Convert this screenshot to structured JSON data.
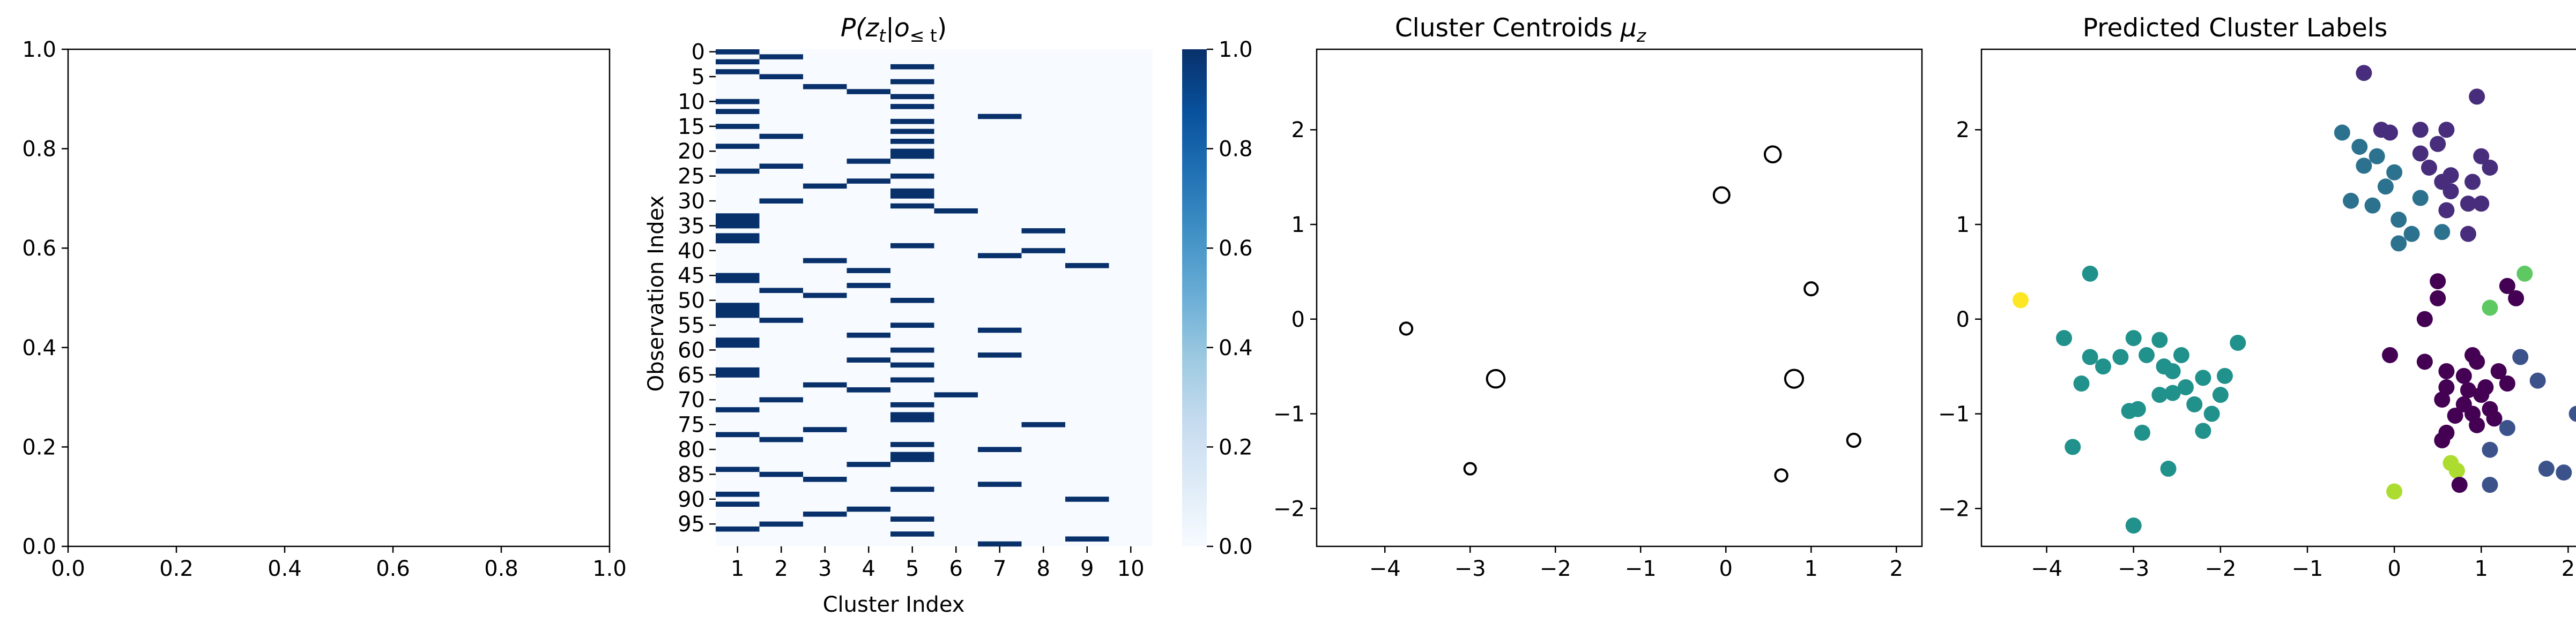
{
  "chart_data": [
    {
      "type": "empty",
      "title": "",
      "xlim": [
        0,
        1
      ],
      "ylim": [
        0,
        1
      ],
      "xticks": [
        "0.0",
        "0.2",
        "0.4",
        "0.6",
        "0.8",
        "1.0"
      ],
      "yticks": [
        "0.0",
        "0.2",
        "0.4",
        "0.6",
        "0.8",
        "1.0"
      ]
    },
    {
      "type": "heatmap",
      "title": "P(z_t | o_≤t)",
      "title_parts": {
        "p": "P(",
        "z": "z",
        "zsub": "t",
        "bar": "|",
        "o": "o",
        "osub": "≤ t",
        "close": ")"
      },
      "xlabel": "Cluster Index",
      "ylabel": "Observation Index",
      "x_categories": [
        "1",
        "2",
        "3",
        "4",
        "5",
        "6",
        "7",
        "8",
        "9",
        "10"
      ],
      "y_tick_labels": [
        "0",
        "5",
        "10",
        "15",
        "20",
        "25",
        "30",
        "35",
        "40",
        "45",
        "50",
        "55",
        "60",
        "65",
        "70",
        "75",
        "80",
        "85",
        "90",
        "95"
      ],
      "n_rows": 100,
      "value_range": [
        0,
        1
      ],
      "colormap": [
        "#f7fbff",
        "#deebf7",
        "#c6dbef",
        "#9ecae1",
        "#6baed6",
        "#4292c6",
        "#2171b5",
        "#08519c",
        "#08306b"
      ],
      "colorbar_ticks": [
        "0.0",
        "0.2",
        "0.4",
        "0.6",
        "0.8",
        "1.0"
      ],
      "argmax_cluster": [
        1,
        2,
        1,
        5,
        1,
        2,
        5,
        3,
        4,
        5,
        1,
        5,
        1,
        7,
        5,
        1,
        5,
        2,
        5,
        1,
        5,
        5,
        4,
        2,
        1,
        5,
        4,
        3,
        5,
        5,
        2,
        5,
        6,
        1,
        1,
        1,
        8,
        1,
        1,
        5,
        8,
        7,
        3,
        9,
        4,
        1,
        1,
        4,
        2,
        3,
        5,
        1,
        1,
        1,
        2,
        5,
        7,
        4,
        1,
        1,
        5,
        7,
        4,
        5,
        1,
        1,
        5,
        3,
        4,
        6,
        2,
        5,
        1,
        5,
        5,
        8,
        3,
        1,
        2,
        5,
        7,
        5,
        5,
        4,
        1,
        2,
        3,
        7,
        5,
        1,
        9,
        1,
        4,
        3,
        5,
        2,
        1,
        5,
        9,
        7
      ],
      "argmax_prob": [
        1,
        1,
        1,
        1,
        1,
        1,
        1,
        1,
        1,
        1,
        1,
        1,
        1,
        1,
        1,
        1,
        1,
        1,
        1,
        1,
        1,
        1,
        1,
        1,
        1,
        1,
        1,
        1,
        1,
        1,
        1,
        1,
        1,
        1,
        1,
        1,
        1,
        1,
        1,
        1,
        1,
        1,
        1,
        1,
        1,
        1,
        1,
        1,
        1,
        1,
        1,
        1,
        1,
        1,
        1,
        1,
        1,
        1,
        1,
        1,
        1,
        1,
        1,
        1,
        1,
        1,
        1,
        1,
        1,
        1,
        1,
        1,
        1,
        1,
        1,
        1,
        1,
        1,
        1,
        1,
        1,
        1,
        1,
        1,
        1,
        1,
        1,
        1,
        1,
        1,
        1,
        1,
        1,
        1,
        1,
        1,
        1,
        1,
        1,
        1
      ]
    },
    {
      "type": "scatter",
      "title": "Cluster Centroids",
      "title_symbol": "μ",
      "title_sub": "z",
      "xlim": [
        -4.8,
        2.3
      ],
      "ylim": [
        -2.4,
        2.85
      ],
      "xticks": [
        -4,
        -3,
        -2,
        -1,
        0,
        1,
        2
      ],
      "yticks": [
        -2,
        -1,
        0,
        1,
        2
      ],
      "points": [
        {
          "x": 0.55,
          "y": 1.74,
          "size": 1.3
        },
        {
          "x": -0.05,
          "y": 1.31,
          "size": 1.25
        },
        {
          "x": 1.0,
          "y": 0.32,
          "size": 0.85
        },
        {
          "x": -3.75,
          "y": -0.1,
          "size": 0.7
        },
        {
          "x": -2.7,
          "y": -0.63,
          "size": 1.55
        },
        {
          "x": 0.8,
          "y": -0.63,
          "size": 1.6
        },
        {
          "x": 1.5,
          "y": -1.28,
          "size": 0.85
        },
        {
          "x": -3.0,
          "y": -1.58,
          "size": 0.6
        },
        {
          "x": 0.65,
          "y": -1.65,
          "size": 0.7
        }
      ]
    },
    {
      "type": "scatter",
      "title": "Predicted Cluster Labels",
      "xlim": [
        -4.75,
        2.3
      ],
      "ylim": [
        -2.4,
        2.85
      ],
      "xticks": [
        -4,
        -3,
        -2,
        -1,
        0,
        1,
        2
      ],
      "yticks": [
        -2,
        -1,
        0,
        1,
        2
      ],
      "label_colors": {
        "0": "#440154",
        "1": "#472d7b",
        "2": "#3b528b",
        "3": "#2c728e",
        "4": "#21918c",
        "5": "#28ae80",
        "6": "#5ec962",
        "7": "#addc30",
        "8": "#fde725"
      },
      "points": [
        {
          "x": -0.35,
          "y": 2.6,
          "c": 1
        },
        {
          "x": 0.95,
          "y": 2.35,
          "c": 1
        },
        {
          "x": -0.6,
          "y": 1.97,
          "c": 3
        },
        {
          "x": -0.15,
          "y": 2.0,
          "c": 1
        },
        {
          "x": -0.05,
          "y": 1.97,
          "c": 1
        },
        {
          "x": 0.3,
          "y": 2.0,
          "c": 1
        },
        {
          "x": 0.6,
          "y": 2.0,
          "c": 1
        },
        {
          "x": -0.4,
          "y": 1.82,
          "c": 3
        },
        {
          "x": 0.5,
          "y": 1.85,
          "c": 1
        },
        {
          "x": -0.2,
          "y": 1.72,
          "c": 3
        },
        {
          "x": 0.0,
          "y": 1.55,
          "c": 3
        },
        {
          "x": 0.3,
          "y": 1.75,
          "c": 1
        },
        {
          "x": 1.0,
          "y": 1.72,
          "c": 1
        },
        {
          "x": -0.35,
          "y": 1.62,
          "c": 3
        },
        {
          "x": 0.4,
          "y": 1.6,
          "c": 1
        },
        {
          "x": 0.65,
          "y": 1.52,
          "c": 1
        },
        {
          "x": 1.1,
          "y": 1.6,
          "c": 1
        },
        {
          "x": -0.1,
          "y": 1.4,
          "c": 3
        },
        {
          "x": 0.55,
          "y": 1.45,
          "c": 1
        },
        {
          "x": 0.65,
          "y": 1.35,
          "c": 1
        },
        {
          "x": 0.9,
          "y": 1.45,
          "c": 1
        },
        {
          "x": -0.5,
          "y": 1.25,
          "c": 3
        },
        {
          "x": -0.25,
          "y": 1.2,
          "c": 3
        },
        {
          "x": 0.3,
          "y": 1.28,
          "c": 3
        },
        {
          "x": 0.85,
          "y": 1.22,
          "c": 1
        },
        {
          "x": 0.05,
          "y": 1.05,
          "c": 3
        },
        {
          "x": 0.6,
          "y": 1.15,
          "c": 1
        },
        {
          "x": 1.0,
          "y": 1.22,
          "c": 1
        },
        {
          "x": 0.2,
          "y": 0.9,
          "c": 3
        },
        {
          "x": 0.55,
          "y": 0.92,
          "c": 3
        },
        {
          "x": 0.05,
          "y": 0.8,
          "c": 3
        },
        {
          "x": 0.85,
          "y": 0.9,
          "c": 1
        },
        {
          "x": -4.3,
          "y": 0.2,
          "c": 8
        },
        {
          "x": -3.5,
          "y": 0.48,
          "c": 4
        },
        {
          "x": -3.8,
          "y": -0.2,
          "c": 4
        },
        {
          "x": -3.0,
          "y": -0.2,
          "c": 4
        },
        {
          "x": -2.7,
          "y": -0.22,
          "c": 4
        },
        {
          "x": -3.5,
          "y": -0.4,
          "c": 4
        },
        {
          "x": -3.15,
          "y": -0.4,
          "c": 4
        },
        {
          "x": -2.85,
          "y": -0.38,
          "c": 4
        },
        {
          "x": -2.45,
          "y": -0.38,
          "c": 4
        },
        {
          "x": -1.8,
          "y": -0.25,
          "c": 4
        },
        {
          "x": -3.35,
          "y": -0.5,
          "c": 4
        },
        {
          "x": -2.65,
          "y": -0.5,
          "c": 4
        },
        {
          "x": -2.55,
          "y": -0.55,
          "c": 4
        },
        {
          "x": -3.6,
          "y": -0.68,
          "c": 4
        },
        {
          "x": -2.2,
          "y": -0.62,
          "c": 4
        },
        {
          "x": -1.95,
          "y": -0.6,
          "c": 4
        },
        {
          "x": -2.4,
          "y": -0.72,
          "c": 4
        },
        {
          "x": -2.7,
          "y": -0.8,
          "c": 4
        },
        {
          "x": -2.55,
          "y": -0.78,
          "c": 4
        },
        {
          "x": -2.95,
          "y": -0.95,
          "c": 4
        },
        {
          "x": -3.05,
          "y": -0.97,
          "c": 4
        },
        {
          "x": -2.0,
          "y": -0.8,
          "c": 4
        },
        {
          "x": -2.3,
          "y": -0.9,
          "c": 4
        },
        {
          "x": -2.1,
          "y": -1.0,
          "c": 4
        },
        {
          "x": -2.9,
          "y": -1.2,
          "c": 4
        },
        {
          "x": -2.2,
          "y": -1.18,
          "c": 4
        },
        {
          "x": -3.7,
          "y": -1.35,
          "c": 4
        },
        {
          "x": -2.6,
          "y": -1.58,
          "c": 4
        },
        {
          "x": -3.0,
          "y": -2.18,
          "c": 4
        },
        {
          "x": 0.5,
          "y": 0.4,
          "c": 0
        },
        {
          "x": 0.5,
          "y": 0.22,
          "c": 0
        },
        {
          "x": 1.3,
          "y": 0.35,
          "c": 0
        },
        {
          "x": 1.4,
          "y": 0.22,
          "c": 0
        },
        {
          "x": 1.5,
          "y": 0.48,
          "c": 6
        },
        {
          "x": 1.1,
          "y": 0.12,
          "c": 6
        },
        {
          "x": 0.35,
          "y": 0.0,
          "c": 0
        },
        {
          "x": -0.05,
          "y": -0.38,
          "c": 0
        },
        {
          "x": 0.35,
          "y": -0.45,
          "c": 0
        },
        {
          "x": 0.6,
          "y": -0.55,
          "c": 0
        },
        {
          "x": 0.9,
          "y": -0.38,
          "c": 0
        },
        {
          "x": 0.95,
          "y": -0.45,
          "c": 0
        },
        {
          "x": 1.45,
          "y": -0.4,
          "c": 2
        },
        {
          "x": 0.8,
          "y": -0.6,
          "c": 0
        },
        {
          "x": 1.2,
          "y": -0.55,
          "c": 0
        },
        {
          "x": 0.6,
          "y": -0.72,
          "c": 0
        },
        {
          "x": 0.85,
          "y": -0.75,
          "c": 0
        },
        {
          "x": 1.05,
          "y": -0.72,
          "c": 0
        },
        {
          "x": 1.3,
          "y": -0.68,
          "c": 0
        },
        {
          "x": 1.65,
          "y": -0.65,
          "c": 2
        },
        {
          "x": 0.55,
          "y": -0.85,
          "c": 0
        },
        {
          "x": 0.8,
          "y": -0.9,
          "c": 0
        },
        {
          "x": 1.0,
          "y": -0.8,
          "c": 0
        },
        {
          "x": 1.1,
          "y": -0.95,
          "c": 0
        },
        {
          "x": 0.7,
          "y": -1.02,
          "c": 0
        },
        {
          "x": 0.9,
          "y": -1.0,
          "c": 0
        },
        {
          "x": 1.15,
          "y": -1.05,
          "c": 0
        },
        {
          "x": 2.1,
          "y": -1.0,
          "c": 2
        },
        {
          "x": 0.6,
          "y": -1.2,
          "c": 0
        },
        {
          "x": 0.95,
          "y": -1.12,
          "c": 0
        },
        {
          "x": 1.3,
          "y": -1.15,
          "c": 2
        },
        {
          "x": 0.55,
          "y": -1.28,
          "c": 0
        },
        {
          "x": 1.1,
          "y": -1.38,
          "c": 2
        },
        {
          "x": 0.65,
          "y": -1.52,
          "c": 7
        },
        {
          "x": 0.72,
          "y": -1.6,
          "c": 7
        },
        {
          "x": 1.75,
          "y": -1.58,
          "c": 2
        },
        {
          "x": 1.95,
          "y": -1.62,
          "c": 2
        },
        {
          "x": 0.75,
          "y": -1.75,
          "c": 0
        },
        {
          "x": 1.1,
          "y": -1.75,
          "c": 2
        },
        {
          "x": 0.0,
          "y": -1.82,
          "c": 7
        }
      ]
    }
  ]
}
